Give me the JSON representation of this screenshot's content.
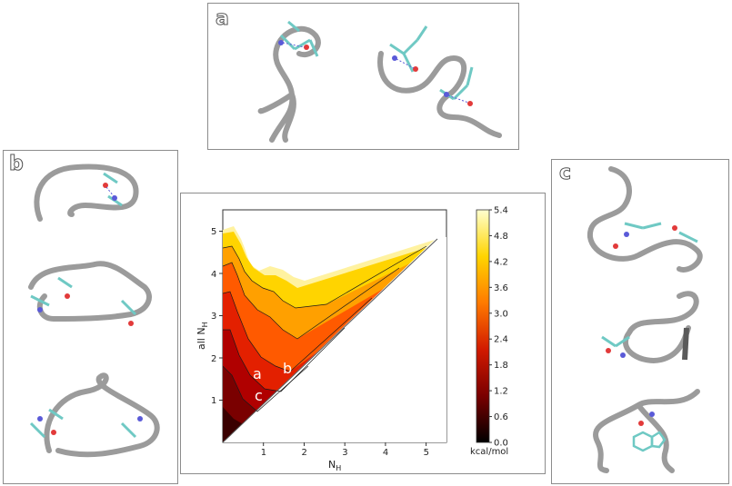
{
  "panels": {
    "a": {
      "letter": "a"
    },
    "b": {
      "letter": "b"
    },
    "c": {
      "letter": "c"
    }
  },
  "colors": {
    "tube": "#9b9b9b",
    "carbon": "#6fc9c4",
    "nitrogen": "#5a5ad8",
    "oxygen": "#e23a3a",
    "hbond": "#5a5ad8"
  },
  "chart_data": {
    "type": "heatmap",
    "xlabel_main": "N",
    "xlabel_sub": "H",
    "ylabel_main": "all N",
    "ylabel_sub": "H",
    "x_ticks": [
      "1",
      "2",
      "3",
      "4",
      "5"
    ],
    "y_ticks": [
      "1",
      "2",
      "3",
      "4",
      "5"
    ],
    "xlim": [
      0,
      5.5
    ],
    "ylim": [
      0,
      5.5
    ],
    "colorbar": {
      "unit": "kcal/mol",
      "ticks": [
        "0.0",
        "0.6",
        "1.2",
        "1.8",
        "2.4",
        "3.0",
        "3.6",
        "4.2",
        "4.8",
        "5.4"
      ],
      "range": [
        0,
        5.4
      ]
    },
    "annotations": [
      {
        "label": "a",
        "x": 0.85,
        "y": 1.75
      },
      {
        "label": "b",
        "x": 1.65,
        "y": 1.85
      },
      {
        "label": "c",
        "x": 0.9,
        "y": 1.15
      }
    ]
  }
}
